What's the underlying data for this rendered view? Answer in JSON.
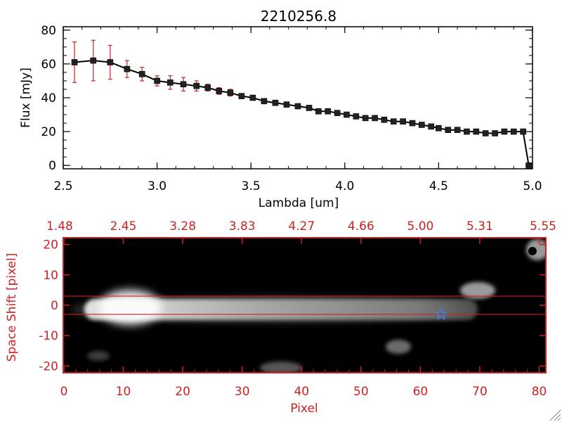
{
  "chart_data": [
    {
      "type": "line",
      "title": "2210256.8",
      "xlabel": "Lambda [um]",
      "ylabel": "Flux [mJy]",
      "xlim": [
        2.5,
        5.0
      ],
      "ylim": [
        -2,
        82
      ],
      "x_ticks": [
        "2.5",
        "3.0",
        "3.5",
        "4.0",
        "4.5",
        "5.0"
      ],
      "y_ticks": [
        "0",
        "20",
        "40",
        "60",
        "80"
      ],
      "grid": false,
      "colors": {
        "line": "#000000",
        "marker": "#222222",
        "errorbar": "#cc2222"
      },
      "series": [
        {
          "x": [
            2.56,
            2.66,
            2.75,
            2.84,
            2.92,
            3.0,
            3.07,
            3.14,
            3.21,
            3.27,
            3.33,
            3.39,
            3.45,
            3.51,
            3.57,
            3.63,
            3.69,
            3.75,
            3.81,
            3.86,
            3.91,
            3.96,
            4.01,
            4.06,
            4.11,
            4.16,
            4.21,
            4.26,
            4.31,
            4.36,
            4.41,
            4.46,
            4.5,
            4.55,
            4.6,
            4.65,
            4.7,
            4.75,
            4.8,
            4.85,
            4.9,
            4.95,
            4.98
          ],
          "y": [
            61,
            62,
            61,
            57,
            54,
            50,
            49,
            48,
            47,
            46,
            44,
            43,
            41,
            40,
            38,
            37,
            36,
            35,
            34,
            32,
            32,
            31,
            30,
            29,
            28,
            28,
            27,
            26,
            26,
            25,
            24,
            23,
            22,
            21,
            21,
            20,
            20,
            19,
            19,
            20,
            20,
            20,
            0
          ],
          "yerr": [
            12,
            12,
            10,
            5,
            4,
            3,
            4,
            4,
            3,
            2,
            2,
            2,
            1,
            1,
            1,
            1,
            1,
            1,
            1,
            1,
            1,
            1,
            1,
            1,
            1,
            1,
            1,
            1,
            1,
            1,
            1,
            1,
            1,
            1,
            1,
            1,
            1,
            1,
            1,
            1,
            1,
            1,
            0
          ]
        }
      ]
    },
    {
      "type": "heatmap",
      "xlabel": "Pixel",
      "ylabel": "Space Shift [pixel]",
      "xlim": [
        0,
        81
      ],
      "ylim": [
        -22,
        22
      ],
      "x_ticks": [
        "0",
        "10",
        "20",
        "30",
        "40",
        "50",
        "60",
        "70",
        "80"
      ],
      "y_ticks": [
        "-20",
        "-10",
        "0",
        "10",
        "20"
      ],
      "top_ticks": [
        "1.48",
        "2.45",
        "3.28",
        "3.83",
        "4.27",
        "4.66",
        "5.00",
        "5.31",
        "5.55"
      ],
      "guide_lines_y": [
        3,
        -3
      ],
      "marker": {
        "x": 63.5,
        "y": -3,
        "shape": "star"
      },
      "colors": {
        "frame": "#cc2222",
        "marker": "#3f7fe0",
        "background": "#000000"
      }
    }
  ]
}
